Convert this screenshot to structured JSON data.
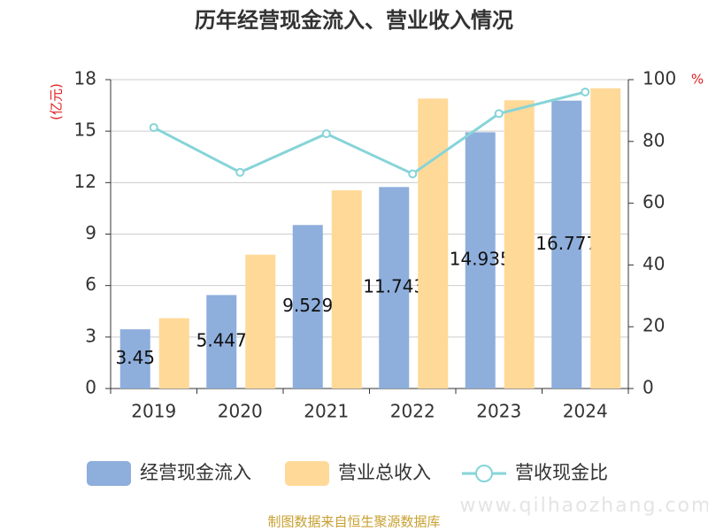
{
  "chart_data": {
    "type": "bar",
    "title": "历年经营现金流入、营业收入情况",
    "y_label": "(亿元)",
    "y2_label": "%",
    "categories": [
      "2019",
      "2020",
      "2021",
      "2022",
      "2023",
      "2024"
    ],
    "series": [
      {
        "name": "经营现金流入",
        "type": "bar",
        "color": "#8eaedc",
        "values": [
          3.45,
          5.447,
          9.529,
          11.743,
          14.935,
          16.777
        ]
      },
      {
        "name": "营业总收入",
        "type": "bar",
        "color": "#ffd998",
        "values": [
          4.1,
          7.8,
          11.55,
          16.9,
          16.8,
          17.5
        ]
      },
      {
        "name": "营收现金比",
        "type": "line",
        "axis": "y2",
        "color": "#86d4d8",
        "values": [
          84.5,
          70,
          82.5,
          69.5,
          89,
          96
        ]
      }
    ],
    "ylim": [
      0,
      18
    ],
    "yticks": [
      0,
      3,
      6,
      9,
      12,
      15,
      18
    ],
    "y2lim": [
      0,
      100
    ],
    "y2ticks": [
      0,
      20,
      40,
      60,
      80,
      100
    ],
    "grid": true,
    "legend": "bottom",
    "source": "制图数据来自恒生聚源数据库",
    "watermark": "www.qilhaozhang.com"
  }
}
